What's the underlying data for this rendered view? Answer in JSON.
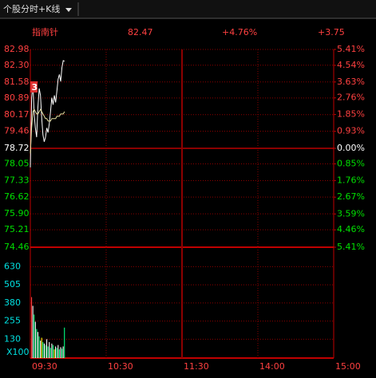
{
  "header": {
    "title": "个股分时+K线",
    "name": "指南针",
    "price": "82.47",
    "change_pct": "+4.76%",
    "change": "+3.75",
    "marker": "3"
  },
  "chart_data": [
    {
      "type": "line",
      "grid": true,
      "x": [
        0,
        1,
        2,
        3,
        4,
        5,
        6,
        7,
        8,
        9,
        10,
        11,
        12,
        13,
        14,
        15,
        16,
        17,
        18,
        19,
        20,
        21,
        22,
        23,
        24,
        25,
        26,
        27
      ],
      "series": [
        {
          "name": "price",
          "color": "#ffffff",
          "values": [
            77.9,
            80.9,
            81.5,
            80.2,
            79.6,
            79.2,
            80.5,
            81.3,
            81.0,
            80.0,
            79.3,
            79.0,
            79.2,
            79.6,
            79.4,
            79.8,
            80.3,
            80.9,
            80.6,
            81.0,
            80.7,
            81.2,
            81.7,
            81.9,
            81.6,
            82.2,
            82.5,
            82.47
          ]
        },
        {
          "name": "average",
          "color": "#e8e0a0",
          "values": [
            78.5,
            79.6,
            80.3,
            80.4,
            80.3,
            80.2,
            80.2,
            80.3,
            80.4,
            80.3,
            80.2,
            80.1,
            80.0,
            80.0,
            79.9,
            79.9,
            79.9,
            80.0,
            80.0,
            80.0,
            80.0,
            80.1,
            80.1,
            80.1,
            80.2,
            80.2,
            80.2,
            80.3
          ]
        }
      ],
      "xlim": [
        0,
        240
      ],
      "ylim": [
        74.46,
        82.98
      ],
      "yticks": [
        {
          "value": 82.98,
          "label": "82.98"
        },
        {
          "value": 82.3,
          "label": "82.30"
        },
        {
          "value": 81.58,
          "label": "81.58"
        },
        {
          "value": 80.89,
          "label": "80.89"
        },
        {
          "value": 80.17,
          "label": "80.17"
        },
        {
          "value": 79.46,
          "label": "79.46"
        },
        {
          "value": 78.72,
          "label": "78.72"
        },
        {
          "value": 78.05,
          "label": "78.05"
        },
        {
          "value": 77.33,
          "label": "77.33"
        },
        {
          "value": 76.62,
          "label": "76.62"
        },
        {
          "value": 75.9,
          "label": "75.90"
        },
        {
          "value": 75.21,
          "label": "75.21"
        },
        {
          "value": 74.46,
          "label": "74.46"
        }
      ],
      "y2lim": [
        -5.41,
        5.41
      ],
      "y2ticks": [
        {
          "value": 5.41,
          "label": "5.41%"
        },
        {
          "value": 4.54,
          "label": "4.54%"
        },
        {
          "value": 3.63,
          "label": "3.63%"
        },
        {
          "value": 2.76,
          "label": "2.76%"
        },
        {
          "value": 1.85,
          "label": "1.85%"
        },
        {
          "value": 0.93,
          "label": "0.93%"
        },
        {
          "value": 0,
          "label": "0.00%"
        },
        {
          "value": -0.85,
          "label": "0.85%"
        },
        {
          "value": -1.76,
          "label": "1.76%"
        },
        {
          "value": -2.67,
          "label": "2.67%"
        },
        {
          "value": -3.59,
          "label": "3.59%"
        },
        {
          "value": -4.46,
          "label": "4.46%"
        },
        {
          "value": -5.41,
          "label": "5.41%"
        }
      ]
    },
    {
      "type": "bar",
      "grid": true,
      "volume_unit": "X100",
      "x": [
        0,
        1,
        2,
        3,
        4,
        5,
        6,
        7,
        8,
        9,
        10,
        11,
        12,
        13,
        14,
        15,
        16,
        17,
        18,
        19,
        20,
        21,
        22,
        23,
        24,
        25,
        26
      ],
      "values": [
        420,
        360,
        300,
        250,
        200,
        180,
        150,
        120,
        140,
        110,
        100,
        90,
        130,
        80,
        110,
        70,
        100,
        90,
        60,
        80,
        70,
        90,
        60,
        75,
        65,
        80,
        210
      ],
      "colors": [
        "#ff4040",
        "#ffffff",
        "#00ff80",
        "#ffffff",
        "#00ff80",
        "#ffffff",
        "#00ff80",
        "#ffffff",
        "#ffff00",
        "#00ff80",
        "#ffffff",
        "#00ff80",
        "#ffffff",
        "#00ff80",
        "#ffffff",
        "#00ff80",
        "#ffffff",
        "#00ff80",
        "#ffff00",
        "#ffffff",
        "#00ff80",
        "#ffffff",
        "#00ff80",
        "#ffffff",
        "#00ff80",
        "#ffffff",
        "#00ff80"
      ],
      "xlim": [
        0,
        240
      ],
      "xticks": [
        {
          "value": 0,
          "label": "09:30"
        },
        {
          "value": 60,
          "label": "10:30"
        },
        {
          "value": 120,
          "label": "11:30"
        },
        {
          "value": 180,
          "label": "14:00"
        },
        {
          "value": 240,
          "label": "15:00"
        }
      ],
      "ylim": [
        0,
        764
      ],
      "yticks": [
        630,
        505,
        380,
        255,
        130
      ]
    }
  ]
}
